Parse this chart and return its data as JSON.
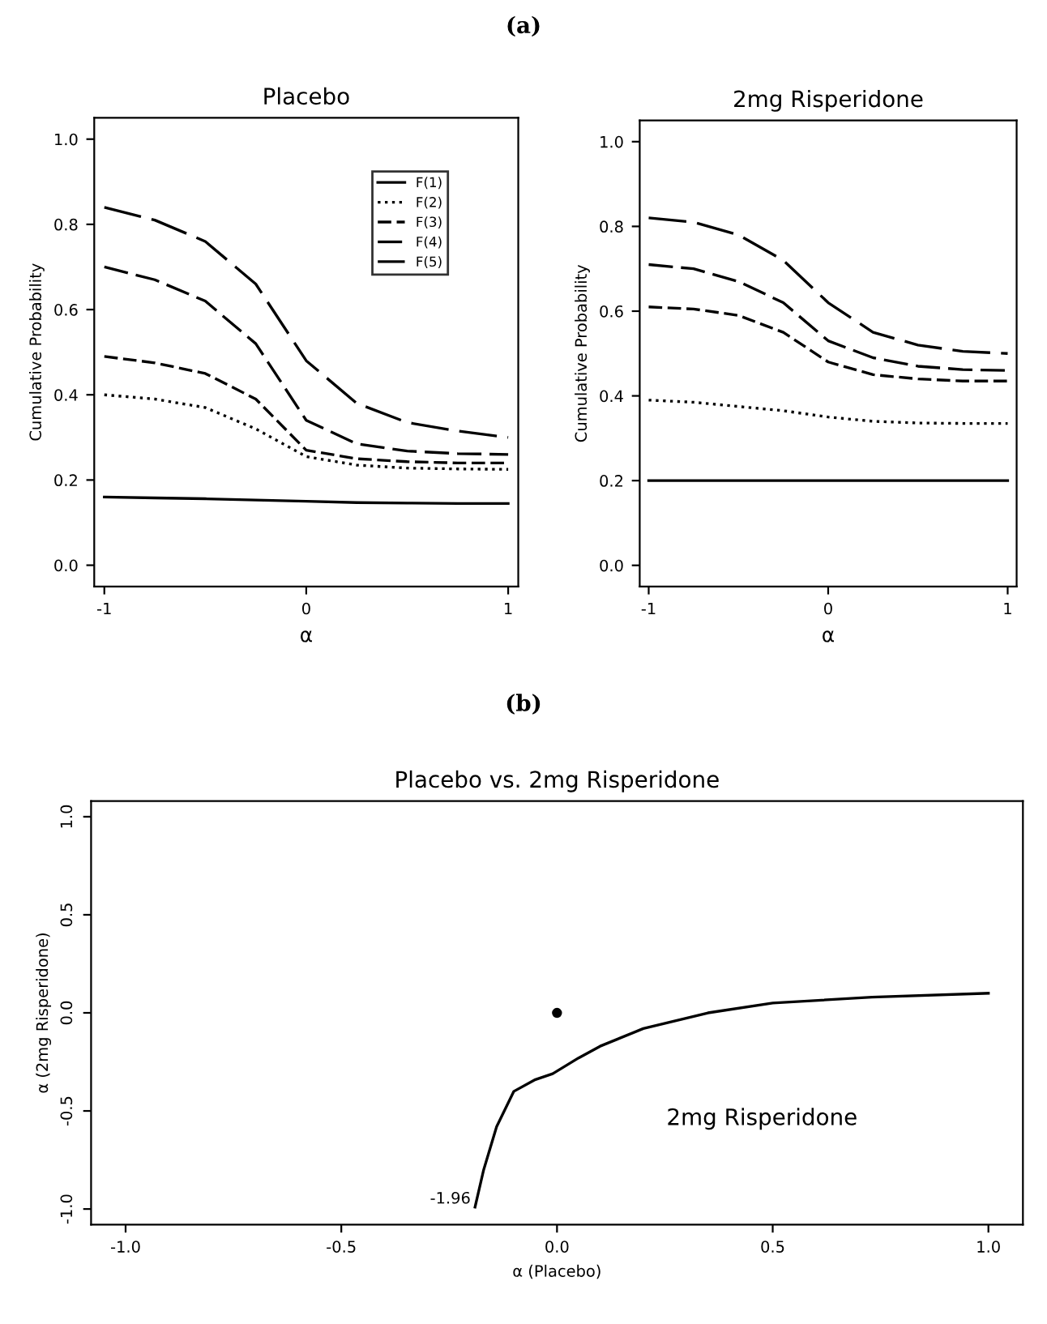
{
  "chart_data": [
    {
      "type": "line",
      "title": "Placebo",
      "xlabel": "α",
      "ylabel": "Cumulative Probability",
      "annotations": [
        "(a)"
      ],
      "xlim": [
        -1.05,
        1.05
      ],
      "ylim": [
        -0.05,
        1.05
      ],
      "xticks": [
        -1,
        0,
        1
      ],
      "yticks": [
        {
          "value": 0,
          "label": "0.0"
        },
        0.2,
        0.4,
        0.6,
        0.8,
        {
          "value": 1,
          "label": "1.0"
        }
      ],
      "grid": false,
      "legend": "top right",
      "marker": "none",
      "x": [
        -1,
        -0.75,
        -0.5,
        -0.25,
        0,
        0.25,
        0.5,
        0.75,
        1
      ],
      "series": [
        {
          "name": "F(1)",
          "color": "#000000",
          "line_style": "solid",
          "values": [
            0.16,
            0.158,
            0.156,
            0.153,
            0.15,
            0.147,
            0.146,
            0.145,
            0.145
          ]
        },
        {
          "name": "F(2)",
          "color": "#000000",
          "line_style": "dotted",
          "values": [
            0.4,
            0.39,
            0.37,
            0.32,
            0.255,
            0.235,
            0.228,
            0.226,
            0.225
          ]
        },
        {
          "name": "F(3)",
          "color": "#000000",
          "line_style": "dashed",
          "values": [
            0.49,
            0.475,
            0.45,
            0.39,
            0.27,
            0.25,
            0.243,
            0.24,
            0.24
          ]
        },
        {
          "name": "F(4)",
          "color": "#000000",
          "line_style": "dashed",
          "values": [
            0.7,
            0.67,
            0.62,
            0.52,
            0.34,
            0.285,
            0.268,
            0.262,
            0.26
          ]
        },
        {
          "name": "F(5)",
          "color": "#000000",
          "line_style": "dashed",
          "values": [
            0.84,
            0.81,
            0.76,
            0.66,
            0.48,
            0.38,
            0.335,
            0.315,
            0.3
          ]
        }
      ]
    },
    {
      "type": "line",
      "title": "2mg Risperidone",
      "xlabel": "α",
      "ylabel": "Cumulative Probability",
      "xlim": [
        -1.05,
        1.05
      ],
      "ylim": [
        -0.05,
        1.05
      ],
      "xticks": [
        -1,
        0,
        1
      ],
      "yticks": [
        {
          "value": 0,
          "label": "0.0"
        },
        0.2,
        0.4,
        0.6,
        0.8,
        {
          "value": 1,
          "label": "1.0"
        }
      ],
      "grid": false,
      "marker": "none",
      "x": [
        -1,
        -0.75,
        -0.5,
        -0.25,
        0,
        0.25,
        0.5,
        0.75,
        1
      ],
      "series": [
        {
          "color": "#000000",
          "line_style": "solid",
          "values": [
            0.2,
            0.2,
            0.2,
            0.2,
            0.2,
            0.2,
            0.2,
            0.2,
            0.2
          ]
        },
        {
          "color": "#000000",
          "line_style": "dotted",
          "values": [
            0.39,
            0.385,
            0.375,
            0.365,
            0.35,
            0.34,
            0.336,
            0.335,
            0.335
          ]
        },
        {
          "color": "#000000",
          "line_style": "dashed",
          "values": [
            0.61,
            0.605,
            0.59,
            0.55,
            0.48,
            0.45,
            0.44,
            0.435,
            0.435
          ]
        },
        {
          "color": "#000000",
          "line_style": "dashed",
          "values": [
            0.71,
            0.7,
            0.67,
            0.62,
            0.53,
            0.49,
            0.47,
            0.462,
            0.46
          ]
        },
        {
          "color": "#000000",
          "line_style": "dashed",
          "values": [
            0.82,
            0.81,
            0.78,
            0.72,
            0.62,
            0.55,
            0.52,
            0.505,
            0.5
          ]
        }
      ]
    },
    {
      "type": "line",
      "title": "Placebo vs. 2mg Risperidone",
      "xlabel": "α (Placebo)",
      "ylabel": "α (2mg Risperidone)",
      "annotations": [
        "(b)",
        {
          "text": "-1.96",
          "x": -0.19,
          "y": -0.95
        },
        "2mg Risperidone"
      ],
      "xlim": [
        -1.08,
        1.08
      ],
      "ylim": [
        -1.08,
        1.08
      ],
      "xticks": [
        {
          "value": -1,
          "label": "-1.0"
        },
        -0.5,
        {
          "value": 0,
          "label": "0.0"
        },
        0.5,
        {
          "value": 1,
          "label": "1.0"
        }
      ],
      "yticks": [
        {
          "value": -1,
          "label": "-1.0"
        },
        -0.5,
        {
          "value": 0,
          "label": "0.0"
        },
        0.5,
        {
          "value": 1,
          "label": "1.0"
        }
      ],
      "grid": false,
      "marker": "none",
      "series": [
        {
          "color": "#000000",
          "line_style": "solid",
          "x": [
            -0.19,
            -0.17,
            -0.14,
            -0.1,
            -0.05,
            -0.01,
            0.05,
            0.1,
            0.2,
            0.35,
            0.5,
            0.73,
            1.0
          ],
          "values": [
            -0.99,
            -0.8,
            -0.58,
            -0.4,
            -0.34,
            -0.31,
            -0.23,
            -0.17,
            -0.08,
            0.0,
            0.05,
            0.08,
            0.1
          ]
        },
        {
          "type": "scatter",
          "color": "#000000",
          "marker": "circle",
          "x": [
            0
          ],
          "values": [
            0
          ]
        }
      ]
    }
  ]
}
